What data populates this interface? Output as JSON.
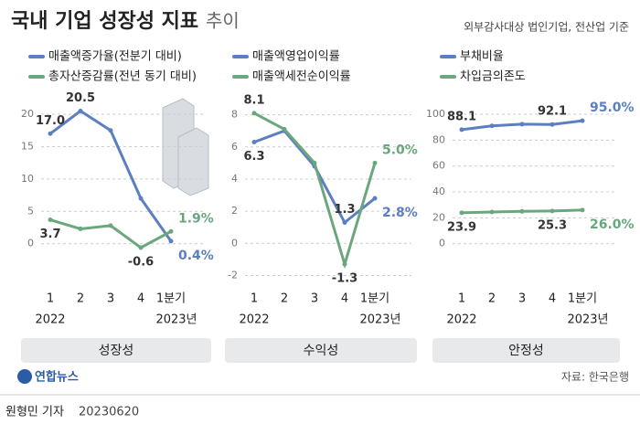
{
  "header": {
    "title": "국내 기업 성장성 지표",
    "title_suffix": "추이",
    "note": "외부감사대상 법인기업, 전산업 기준"
  },
  "chart_data": [
    {
      "type": "line",
      "panel_label": "성장성",
      "categories": [
        "1",
        "2",
        "3",
        "4",
        "1분기"
      ],
      "year_start": "2022",
      "year_end": "2023년",
      "ylim": [
        -5.4,
        22.4
      ],
      "yticks": [
        0,
        5,
        10,
        15,
        20
      ],
      "grid": true,
      "series": [
        {
          "name": "매출액증가율(전분기 대비)",
          "color": "#5b7fc0",
          "values": [
            17.0,
            20.5,
            17.5,
            7.0,
            0.4
          ],
          "value_labels": [
            "17.0",
            "20.5",
            null,
            null,
            "0.4%"
          ]
        },
        {
          "name": "총자산증감률(전년 동기 대비)",
          "color": "#6aa77c",
          "values": [
            3.7,
            2.3,
            2.8,
            -0.6,
            1.9
          ],
          "value_labels": [
            "3.7",
            null,
            null,
            "-0.6",
            "1.9%"
          ]
        }
      ]
    },
    {
      "type": "line",
      "panel_label": "수익성",
      "categories": [
        "1",
        "2",
        "3",
        "4",
        "1분기"
      ],
      "year_start": "2022",
      "year_end": "2023년",
      "ylim": [
        -2.2,
        9
      ],
      "yticks": [
        -2,
        0,
        2,
        4,
        6,
        8
      ],
      "grid": true,
      "series": [
        {
          "name": "매출액영업이익률",
          "color": "#5b7fc0",
          "values": [
            6.3,
            7.0,
            4.8,
            1.3,
            2.8
          ],
          "value_labels": [
            "6.3",
            null,
            null,
            "1.3",
            "2.8%"
          ]
        },
        {
          "name": "매출액세전순이익률",
          "color": "#6aa77c",
          "values": [
            8.1,
            7.1,
            5.0,
            -1.3,
            5.0
          ],
          "value_labels": [
            "8.1",
            null,
            null,
            "-1.3",
            "5.0%"
          ]
        }
      ]
    },
    {
      "type": "line",
      "panel_label": "안정성",
      "categories": [
        "1",
        "2",
        "3",
        "4",
        "1분기"
      ],
      "year_start": "2022",
      "year_end": "2023년",
      "ylim": [
        -27,
        112
      ],
      "yticks": [
        0,
        20,
        40,
        60,
        80,
        100
      ],
      "grid": true,
      "series": [
        {
          "name": "부채비율",
          "color": "#5b7fc0",
          "values": [
            88.1,
            91.0,
            92.3,
            92.1,
            95.0
          ],
          "value_labels": [
            "88.1",
            null,
            null,
            "92.1",
            "95.0%"
          ]
        },
        {
          "name": "차입금의존도",
          "color": "#6aa77c",
          "values": [
            23.9,
            24.5,
            25.0,
            25.3,
            26.0
          ],
          "value_labels": [
            "23.9",
            null,
            null,
            "25.3",
            "26.0%"
          ]
        }
      ]
    }
  ],
  "footer": {
    "logo": "연합뉴스",
    "source": "자료: 한국은행",
    "byline": "원형민 기자",
    "date": "20230620"
  }
}
